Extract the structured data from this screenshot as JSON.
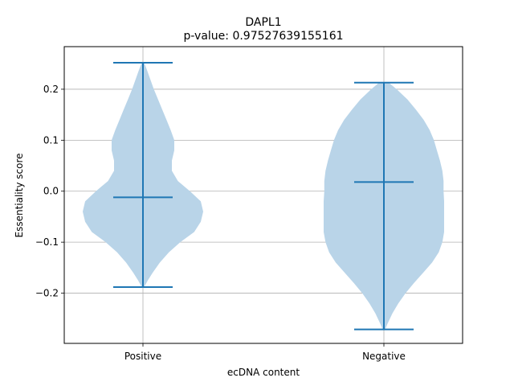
{
  "chart_data": {
    "type": "violin",
    "title": "DAPL1",
    "subtitle": "p-value: 0.97527639155161",
    "xlabel": "ecDNA content",
    "ylabel": "Essentiality score",
    "categories": [
      "Positive",
      "Negative"
    ],
    "ylim": [
      -0.2985,
      0.2835
    ],
    "yticks": [
      -0.2,
      -0.1,
      0.0,
      0.1,
      0.2
    ],
    "ytick_labels": [
      "−0.2",
      "−0.1",
      "0.0",
      "0.1",
      "0.2"
    ],
    "grid": true,
    "colors": {
      "body": "#b9d4e8",
      "line": "#1f77b4"
    },
    "series": [
      {
        "category": "Positive",
        "min": -0.188,
        "median": -0.012,
        "max": 0.252,
        "density": [
          [
            -0.188,
            0.02
          ],
          [
            -0.175,
            0.08
          ],
          [
            -0.16,
            0.16
          ],
          [
            -0.14,
            0.28
          ],
          [
            -0.12,
            0.43
          ],
          [
            -0.1,
            0.62
          ],
          [
            -0.08,
            0.85
          ],
          [
            -0.06,
            0.96
          ],
          [
            -0.04,
            1.0
          ],
          [
            -0.02,
            0.96
          ],
          [
            0.0,
            0.78
          ],
          [
            0.02,
            0.58
          ],
          [
            0.04,
            0.48
          ],
          [
            0.06,
            0.48
          ],
          [
            0.08,
            0.52
          ],
          [
            0.1,
            0.52
          ],
          [
            0.12,
            0.46
          ],
          [
            0.14,
            0.39
          ],
          [
            0.16,
            0.32
          ],
          [
            0.18,
            0.25
          ],
          [
            0.2,
            0.18
          ],
          [
            0.22,
            0.12
          ],
          [
            0.24,
            0.06
          ],
          [
            0.252,
            0.02
          ]
        ]
      },
      {
        "category": "Negative",
        "min": -0.271,
        "median": 0.018,
        "max": 0.213,
        "density": [
          [
            -0.271,
            0.02
          ],
          [
            -0.26,
            0.06
          ],
          [
            -0.24,
            0.14
          ],
          [
            -0.22,
            0.24
          ],
          [
            -0.2,
            0.36
          ],
          [
            -0.18,
            0.5
          ],
          [
            -0.16,
            0.65
          ],
          [
            -0.14,
            0.8
          ],
          [
            -0.12,
            0.91
          ],
          [
            -0.1,
            0.97
          ],
          [
            -0.08,
            1.0
          ],
          [
            -0.06,
            1.0
          ],
          [
            -0.04,
            1.0
          ],
          [
            -0.02,
            1.0
          ],
          [
            0.0,
            0.99
          ],
          [
            0.02,
            0.99
          ],
          [
            0.04,
            0.97
          ],
          [
            0.06,
            0.93
          ],
          [
            0.08,
            0.88
          ],
          [
            0.1,
            0.83
          ],
          [
            0.12,
            0.76
          ],
          [
            0.14,
            0.66
          ],
          [
            0.16,
            0.53
          ],
          [
            0.18,
            0.39
          ],
          [
            0.2,
            0.21
          ],
          [
            0.213,
            0.08
          ]
        ]
      }
    ]
  }
}
